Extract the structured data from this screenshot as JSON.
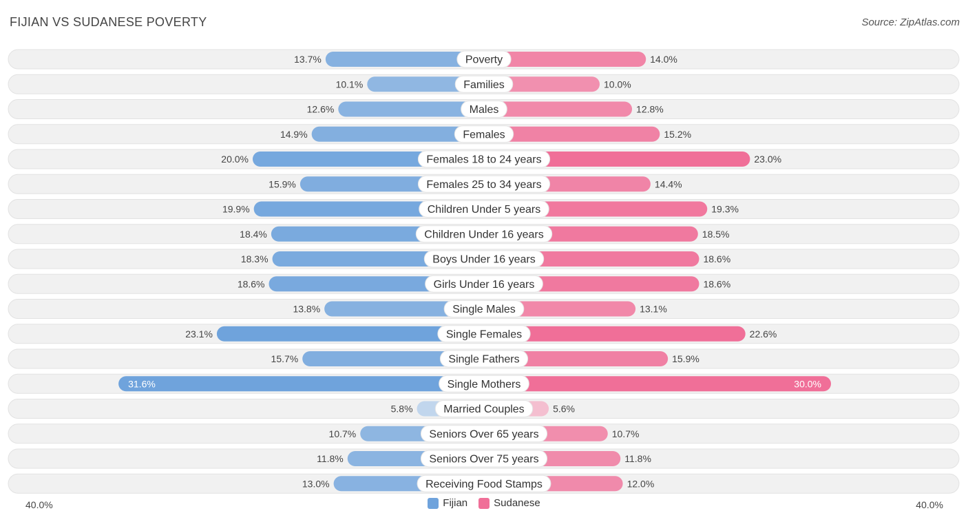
{
  "title": "FIJIAN VS SUDANESE POVERTY",
  "source": "Source: ZipAtlas.com",
  "colors": {
    "fijian": "#6fa3dc",
    "fijian_light": "#a9c9ec",
    "sudanese": "#f06f98",
    "sudanese_light": "#f6a6c0",
    "track": "#efefef"
  },
  "chart_data": {
    "type": "bar",
    "orientation": "horizontal-diverging",
    "title": "FIJIAN VS SUDANESE POVERTY",
    "xlim": [
      0,
      40
    ],
    "axis_labels": {
      "left": "40.0%",
      "right": "40.0%"
    },
    "legend": [
      {
        "name": "Fijian",
        "color": "#6fa3dc"
      },
      {
        "name": "Sudanese",
        "color": "#f06f98"
      }
    ],
    "categories": [
      "Poverty",
      "Families",
      "Males",
      "Females",
      "Females 18 to 24 years",
      "Females 25 to 34 years",
      "Children Under 5 years",
      "Children Under 16 years",
      "Boys Under 16 years",
      "Girls Under 16 years",
      "Single Males",
      "Single Females",
      "Single Fathers",
      "Single Mothers",
      "Married Couples",
      "Seniors Over 65 years",
      "Seniors Over 75 years",
      "Receiving Food Stamps"
    ],
    "series": [
      {
        "name": "Fijian",
        "values": [
          13.7,
          10.1,
          12.6,
          14.9,
          20.0,
          15.9,
          19.9,
          18.4,
          18.3,
          18.6,
          13.8,
          23.1,
          15.7,
          31.6,
          5.8,
          10.7,
          11.8,
          13.0
        ],
        "labels": [
          "13.7%",
          "10.1%",
          "12.6%",
          "14.9%",
          "20.0%",
          "15.9%",
          "19.9%",
          "18.4%",
          "18.3%",
          "18.6%",
          "13.8%",
          "23.1%",
          "15.7%",
          "31.6%",
          "5.8%",
          "10.7%",
          "11.8%",
          "13.0%"
        ]
      },
      {
        "name": "Sudanese",
        "values": [
          14.0,
          10.0,
          12.8,
          15.2,
          23.0,
          14.4,
          19.3,
          18.5,
          18.6,
          18.6,
          13.1,
          22.6,
          15.9,
          30.0,
          5.6,
          10.7,
          11.8,
          12.0
        ],
        "labels": [
          "14.0%",
          "10.0%",
          "12.8%",
          "15.2%",
          "23.0%",
          "14.4%",
          "19.3%",
          "18.5%",
          "18.6%",
          "18.6%",
          "13.1%",
          "22.6%",
          "15.9%",
          "30.0%",
          "5.6%",
          "10.7%",
          "11.8%",
          "12.0%"
        ]
      }
    ]
  }
}
